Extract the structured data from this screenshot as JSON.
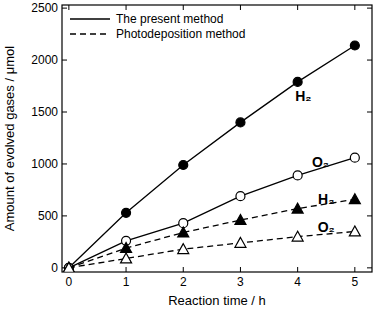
{
  "chart_data": {
    "type": "line",
    "x_label": "Reaction time / h",
    "y_label": "Amount of evolved gases / μmol",
    "x": [
      0,
      1,
      2,
      3,
      4,
      5
    ],
    "series": [
      {
        "name": "The present method",
        "color": "#000000",
        "marker": "circle",
        "line_style": "solid",
        "values": [
          0,
          530,
          990,
          1400,
          1790,
          2140
        ]
      },
      {
        "name": "The present method",
        "color": "#000000",
        "marker": "circle-open",
        "line_style": "solid",
        "values": [
          0,
          260,
          430,
          690,
          890,
          1060
        ]
      },
      {
        "name": "Photodeposition method",
        "color": "#000000",
        "marker": "triangle",
        "line_style": "dashed",
        "values": [
          0,
          190,
          340,
          460,
          570,
          660
        ]
      },
      {
        "name": "Photodeposition method",
        "color": "#000000",
        "marker": "triangle-open",
        "line_style": "dashed",
        "values": [
          0,
          90,
          180,
          240,
          300,
          350
        ]
      }
    ],
    "annotations": [
      {
        "text": "H₂",
        "x": 4.1,
        "y": 1650
      },
      {
        "text": "O₂",
        "x": 4.4,
        "y": 1020
      },
      {
        "text": "H₂",
        "x": 4.5,
        "y": 660
      },
      {
        "text": "O₂",
        "x": 4.5,
        "y": 390
      }
    ],
    "xlim": [
      -0.12,
      5.3
    ],
    "ylim": [
      -40,
      2530
    ],
    "xticks": [
      0,
      1,
      2,
      3,
      4,
      5
    ],
    "yticks": [
      0,
      500,
      1000,
      1500,
      2000,
      2500
    ],
    "grid": false,
    "legend": "upper left"
  }
}
